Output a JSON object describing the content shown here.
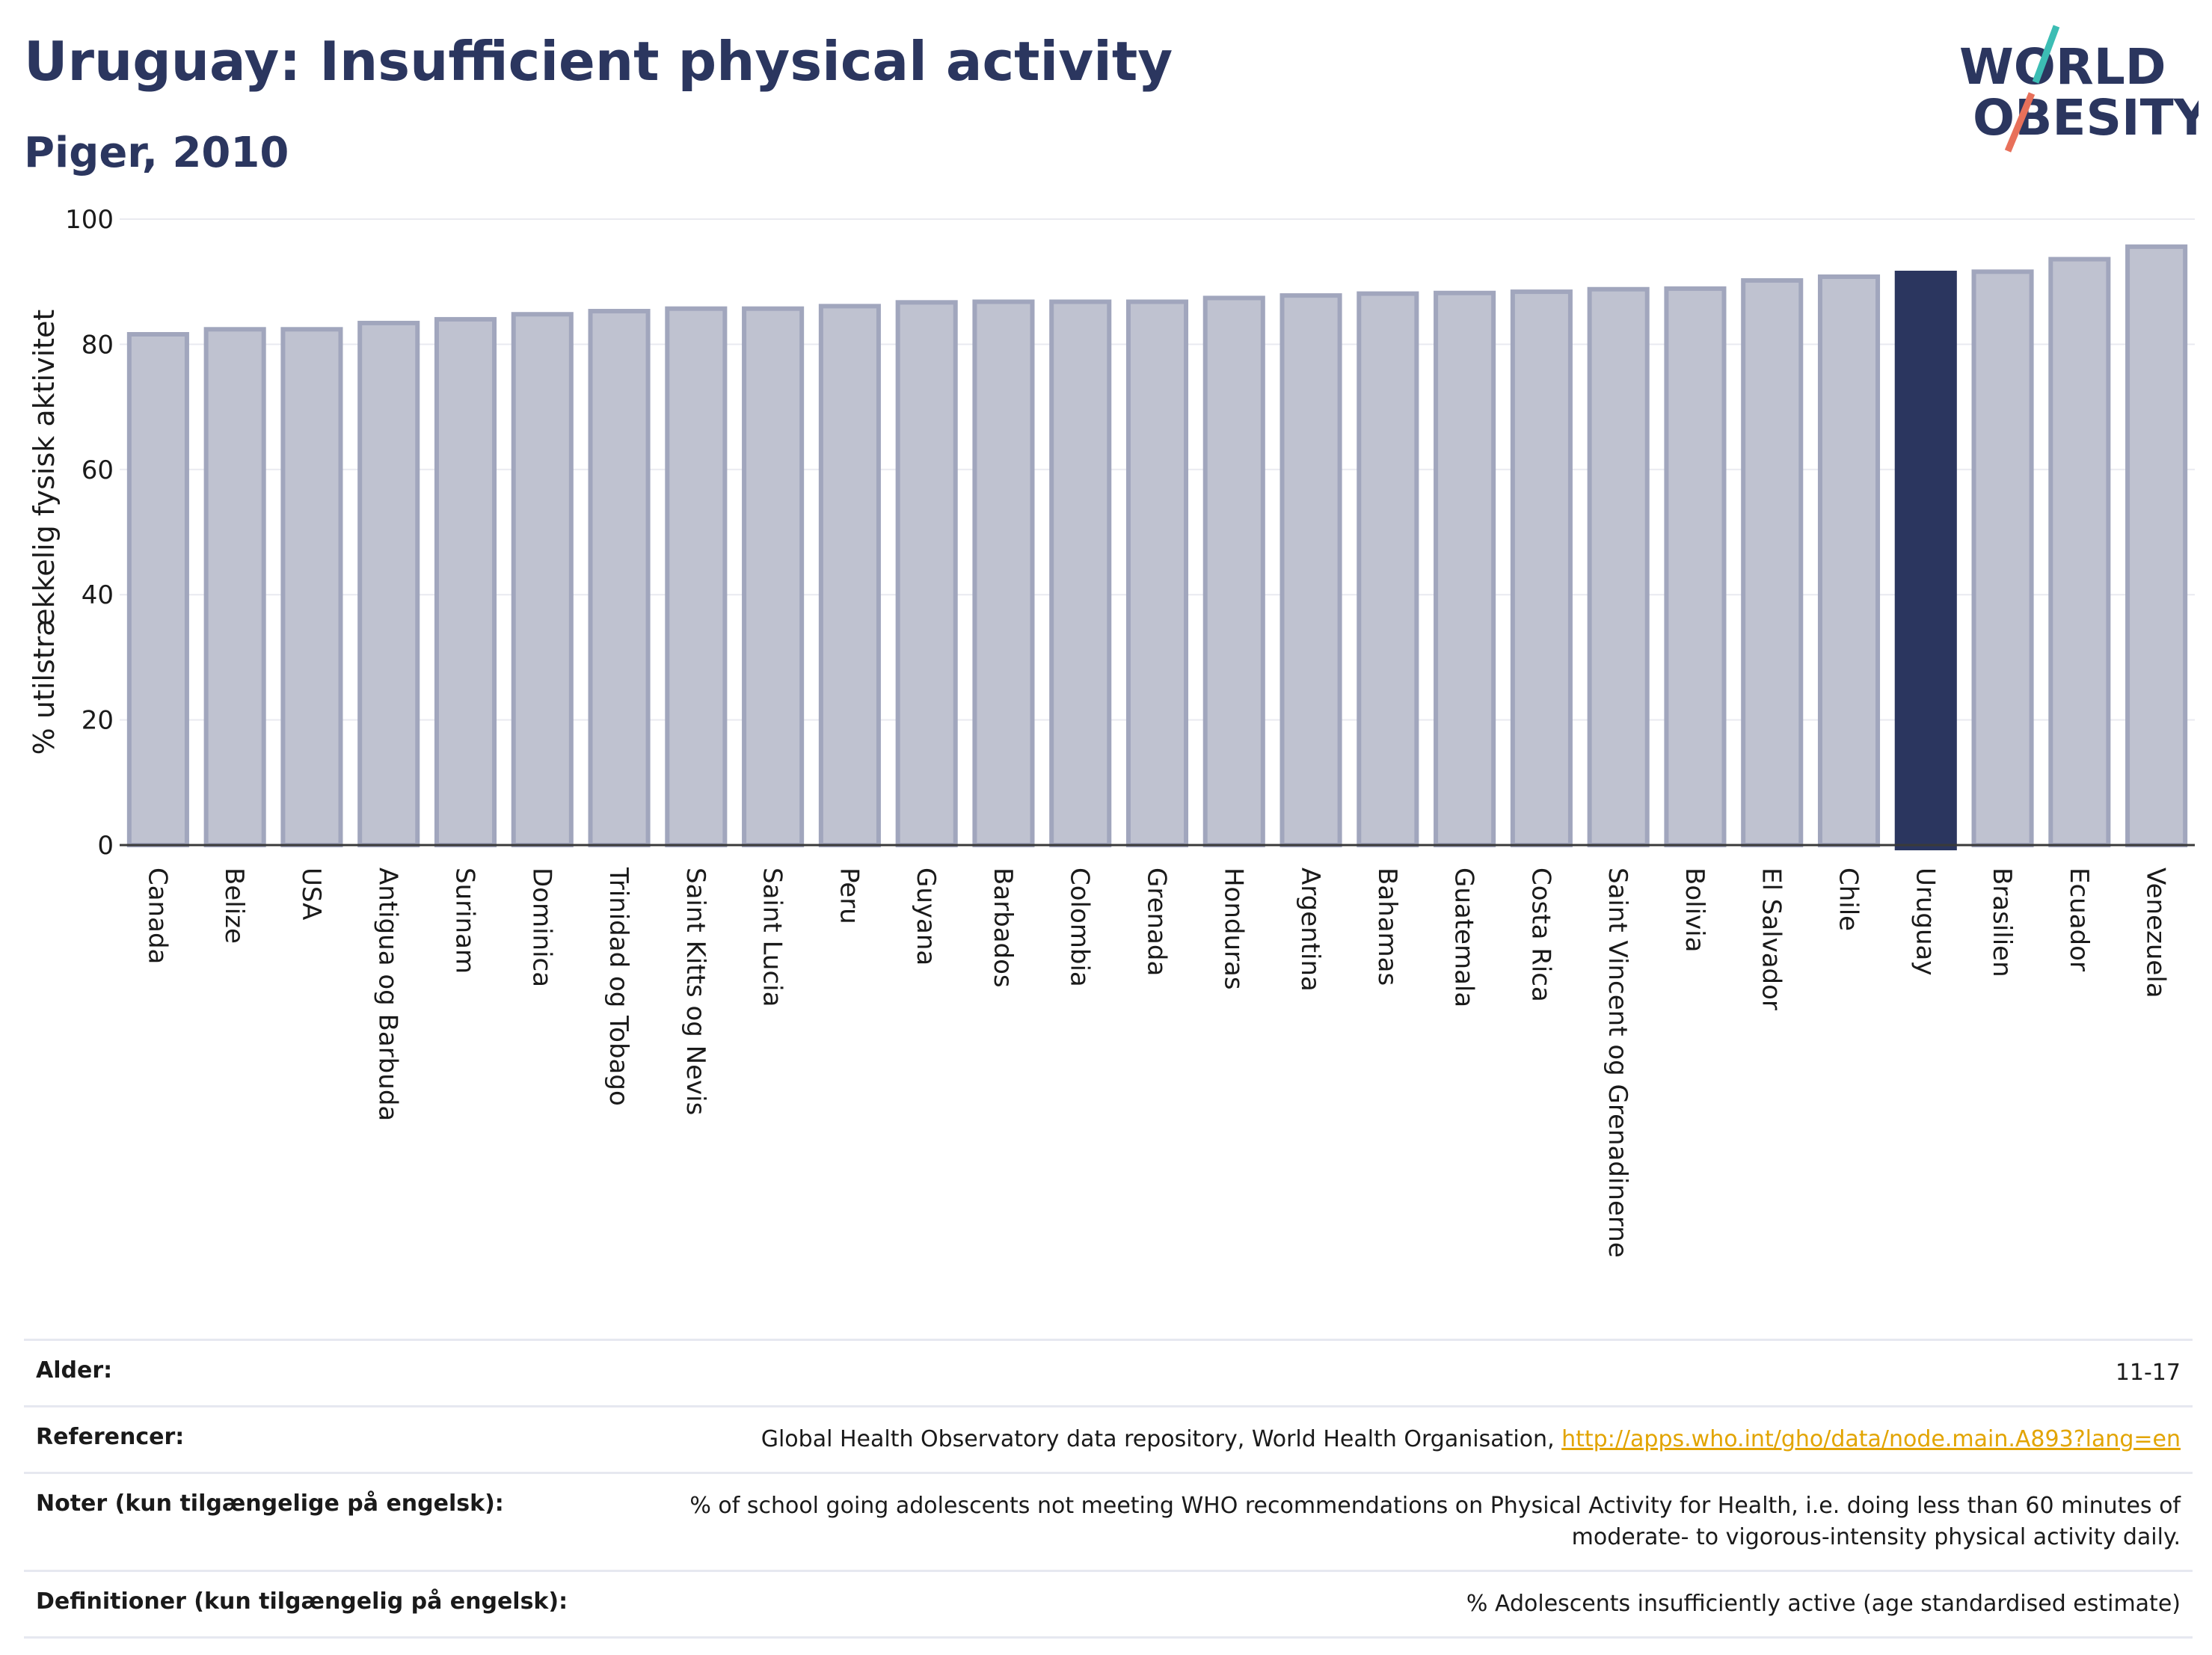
{
  "header": {
    "title": "Uruguay: Insufficient physical activity",
    "subtitle": "Piger, 2010"
  },
  "logo": {
    "line1": "WORLD",
    "line2": "OBESITY"
  },
  "chart_data": {
    "type": "bar",
    "ylabel": "% utilstrækkelig fysisk aktivitet",
    "ylim": [
      0,
      100
    ],
    "yticks": [
      0,
      20,
      40,
      60,
      80,
      100
    ],
    "categories": [
      "Canada",
      "Belize",
      "USA",
      "Antigua og Barbuda",
      "Surinam",
      "Dominica",
      "Trinidad og Tobago",
      "Saint Kitts og Nevis",
      "Saint Lucia",
      "Peru",
      "Guyana",
      "Barbados",
      "Colombia",
      "Grenada",
      "Honduras",
      "Argentina",
      "Bahamas",
      "Guatemala",
      "Costa Rica",
      "Saint Vincent og Grenadinerne",
      "Bolivia",
      "El Salvador",
      "Chile",
      "Uruguay",
      "Brasilien",
      "Ecuador",
      "Venezuela"
    ],
    "values": [
      81.6,
      82.4,
      82.4,
      83.4,
      84.0,
      84.8,
      85.3,
      85.7,
      85.7,
      86.1,
      86.7,
      86.8,
      86.8,
      86.8,
      87.4,
      87.8,
      88.1,
      88.2,
      88.4,
      88.8,
      88.9,
      90.2,
      90.8,
      91.4,
      91.6,
      93.6,
      95.6
    ],
    "highlight": "Uruguay",
    "colors": {
      "bar": "#bfc2d0",
      "bar_edge": "#a1a6bd",
      "highlight": "#2b365f",
      "grid": "#e9eaf0"
    },
    "grid": true
  },
  "info": {
    "rows": [
      {
        "key": "Alder:",
        "value": "11-17"
      },
      {
        "key": "Referencer:",
        "value": "Global Health Observatory data repository, World Health Organisation, ",
        "link": "http://apps.who.int/gho/data/node.main.A893?lang=en"
      },
      {
        "key": "Noter (kun tilgængelige på engelsk):",
        "value": "% of school going adolescents not meeting WHO recommendations on Physical Activity for Health, i.e. doing less than 60 minutes of moderate- to vigorous-intensity physical activity daily."
      },
      {
        "key": "Definitioner (kun tilgængelig på engelsk):",
        "value": "% Adolescents insufficiently active (age standardised estimate)"
      }
    ]
  }
}
